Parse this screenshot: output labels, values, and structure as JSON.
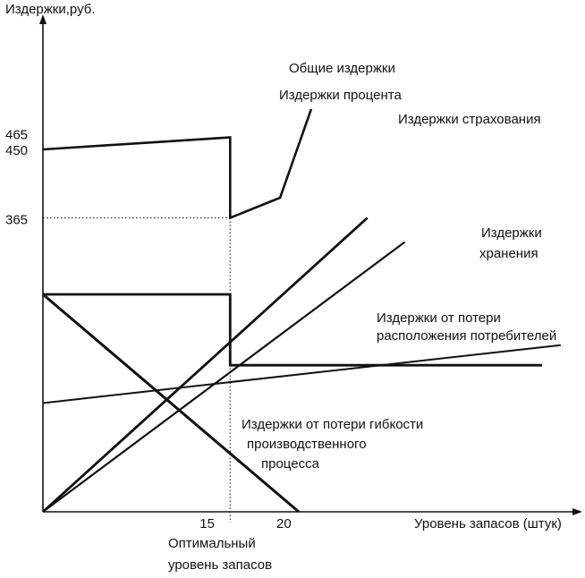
{
  "chart_data": {
    "type": "line",
    "title": "",
    "ylabel": "Издержки,руб.",
    "xlabel": "Уровень запасов (штук)",
    "y_ticks": [
      {
        "value": 465,
        "label": "465"
      },
      {
        "value": 450,
        "label": "450"
      },
      {
        "value": 365,
        "label": "365"
      }
    ],
    "x_ticks": [
      {
        "value": 15,
        "label": "15"
      },
      {
        "value": 20,
        "label": "20"
      }
    ],
    "optimal_label_lines": [
      "Оптимальный",
      "уровень запасов"
    ],
    "optimal_x": 15,
    "series": [
      {
        "name": "Общие издержки",
        "label_lines": [
          "Общие издержки"
        ],
        "points": [
          [
            0,
            450
          ],
          [
            15,
            465
          ],
          [
            15,
            365
          ],
          [
            19,
            390
          ],
          [
            21.5,
            500
          ]
        ]
      },
      {
        "name": "Издержки процента",
        "label_lines": [
          "Издержки процента"
        ],
        "points": [
          [
            0,
            0
          ],
          [
            26,
            365
          ]
        ]
      },
      {
        "name": "Издержки страхования",
        "label_lines": [
          "Издержки страхования"
        ],
        "points": [
          [
            0,
            0
          ],
          [
            29,
            335
          ]
        ]
      },
      {
        "name": "Издержки хранения",
        "label_lines": [
          "Издержки",
          "хранения"
        ],
        "points": [
          [
            0,
            135
          ],
          [
            41.5,
            207
          ]
        ]
      },
      {
        "name": "Издержки от потери расположения потребителей",
        "label_lines": [
          "Издержки от потери",
          "расположения потребителей"
        ],
        "points": [
          [
            0,
            270
          ],
          [
            15,
            270
          ],
          [
            15,
            182
          ],
          [
            40,
            182
          ]
        ]
      },
      {
        "name": "Издержки от потери гибкости производственного процесса",
        "label_lines": [
          "Издержки от потери гибкости",
          "производственного",
          "процесса"
        ],
        "points": [
          [
            0,
            270
          ],
          [
            20.5,
            0
          ]
        ]
      }
    ]
  }
}
